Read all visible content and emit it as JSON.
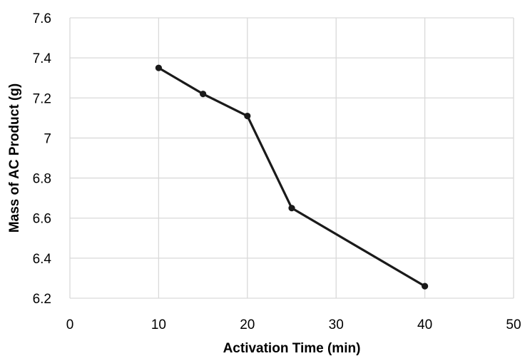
{
  "chart_data": {
    "type": "line",
    "title": "",
    "xlabel": "Activation Time (min)",
    "ylabel": "Mass of AC Product (g)",
    "xlim": [
      0,
      50
    ],
    "ylim": [
      6.2,
      7.6
    ],
    "xticks": [
      "0",
      "10",
      "20",
      "30",
      "40",
      "50"
    ],
    "yticks": [
      "6.2",
      "6.4",
      "6.6",
      "6.8",
      "7",
      "7.2",
      "7.4",
      "7.6"
    ],
    "grid": true,
    "legend": "none",
    "series": [
      {
        "x": [
          10,
          15,
          20,
          25,
          40
        ],
        "y": [
          7.35,
          7.22,
          7.11,
          6.65,
          6.26
        ],
        "color": "#1a1a1a"
      }
    ],
    "colors": {
      "grid": "#d9d9d9",
      "line": "#1a1a1a"
    }
  }
}
